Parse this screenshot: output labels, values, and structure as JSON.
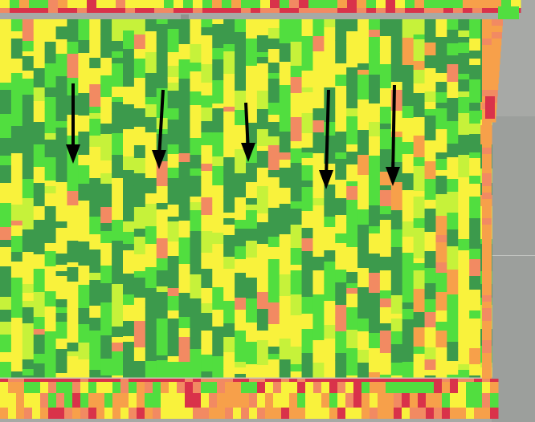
{
  "map": {
    "kind": "yield-heatmap",
    "palette": {
      "dark_green": "#3c9a4c",
      "green": "#51de3f",
      "yellow_green": "#c6f23a",
      "yellow": "#f9f23c",
      "orange": "#f7a04a",
      "salmon": "#f28a62",
      "red": "#d9324a",
      "background": "#a7a9a6",
      "road": "#8e918e",
      "arrow": "#000000"
    },
    "annotations": {
      "arrow_count": 5,
      "direction": "down"
    }
  }
}
